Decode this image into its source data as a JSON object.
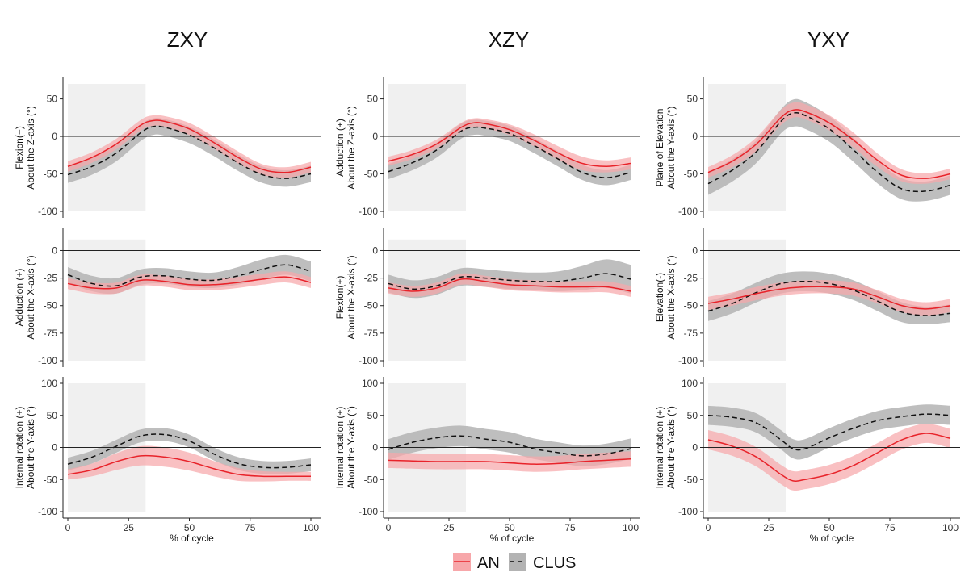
{
  "chart_data": {
    "type": "line",
    "column_titles": [
      "ZXY",
      "XZY",
      "YXY"
    ],
    "xlabel": "% of cycle",
    "x_ticks": [
      0,
      25,
      50,
      75,
      100
    ],
    "xlim": [
      0,
      100
    ],
    "shaded_region_x": [
      0,
      32
    ],
    "legend": {
      "position": "bottom",
      "items": [
        {
          "name": "AN",
          "color": "#e8232a",
          "band_color": "#f7a7aa",
          "line": "solid"
        },
        {
          "name": "CLUS",
          "color": "#111111",
          "band_color": "#b3b3b3",
          "line": "dashed"
        }
      ]
    },
    "panels": [
      {
        "row": 0,
        "col": 0,
        "ylabel_lines": [
          "Flexion(+)",
          "About the Z-axis (°)"
        ],
        "ylim": [
          -100,
          70
        ],
        "y_ticks": [
          -100,
          -50,
          0,
          50
        ],
        "zero_line": true,
        "x": [
          0,
          10,
          20,
          30,
          35,
          40,
          50,
          60,
          70,
          80,
          90,
          100
        ],
        "series": [
          {
            "name": "AN",
            "mean": [
              -40,
              -28,
              -10,
              15,
              21,
              20,
              10,
              -8,
              -28,
              -44,
              -48,
              -41
            ],
            "sd": [
              7,
              7,
              7,
              7,
              7,
              7,
              8,
              8,
              8,
              7,
              7,
              7
            ]
          },
          {
            "name": "CLUS",
            "mean": [
              -51,
              -40,
              -22,
              5,
              13,
              12,
              2,
              -15,
              -35,
              -51,
              -56,
              -50
            ],
            "sd": [
              11,
              11,
              11,
              11,
              11,
              11,
              11,
              11,
              11,
              11,
              11,
              11
            ]
          }
        ]
      },
      {
        "row": 0,
        "col": 1,
        "ylabel_lines": [
          "Adduction (+)",
          "About the Z-axis (°)"
        ],
        "ylim": [
          -100,
          70
        ],
        "y_ticks": [
          -100,
          -50,
          0,
          50
        ],
        "zero_line": true,
        "x": [
          0,
          10,
          20,
          30,
          35,
          40,
          50,
          60,
          70,
          80,
          90,
          100
        ],
        "series": [
          {
            "name": "AN",
            "mean": [
              -33,
              -24,
              -10,
              12,
              18,
              17,
              9,
              -5,
              -22,
              -36,
              -40,
              -36
            ],
            "sd": [
              6,
              6,
              6,
              6,
              6,
              6,
              7,
              8,
              9,
              9,
              8,
              8
            ]
          },
          {
            "name": "CLUS",
            "mean": [
              -47,
              -35,
              -18,
              7,
              12,
              11,
              4,
              -12,
              -30,
              -48,
              -55,
              -48
            ],
            "sd": [
              10,
              10,
              10,
              10,
              10,
              10,
              10,
              10,
              10,
              10,
              10,
              10
            ]
          }
        ]
      },
      {
        "row": 0,
        "col": 2,
        "ylabel_lines": [
          "Plane of Elevation",
          "About the Y-axis (°)"
        ],
        "ylim": [
          -100,
          70
        ],
        "y_ticks": [
          -100,
          -50,
          0,
          50
        ],
        "zero_line": true,
        "x": [
          0,
          10,
          20,
          30,
          35,
          40,
          50,
          60,
          70,
          80,
          90,
          100
        ],
        "series": [
          {
            "name": "AN",
            "mean": [
              -48,
              -33,
              -10,
              25,
              35,
              33,
              18,
              -5,
              -32,
              -52,
              -56,
              -50
            ],
            "sd": [
              7,
              8,
              9,
              10,
              10,
              10,
              10,
              10,
              9,
              8,
              7,
              7
            ]
          },
          {
            "name": "CLUS",
            "mean": [
              -63,
              -45,
              -20,
              20,
              31,
              28,
              10,
              -18,
              -48,
              -70,
              -73,
              -65
            ],
            "sd": [
              15,
              15,
              15,
              16,
              18,
              18,
              17,
              16,
              15,
              14,
              13,
              13
            ]
          }
        ]
      },
      {
        "row": 1,
        "col": 0,
        "ylabel_lines": [
          "Adduction (+)",
          "About the X-axis (°)"
        ],
        "ylim": [
          -100,
          15
        ],
        "y_ticks": [
          -100,
          -75,
          -50,
          -25,
          0
        ],
        "zero_line": true,
        "x": [
          0,
          10,
          20,
          30,
          40,
          50,
          60,
          70,
          80,
          90,
          100
        ],
        "series": [
          {
            "name": "AN",
            "mean": [
              -30,
              -34,
              -34,
              -27,
              -28,
              -31,
              -31,
              -29,
              -26,
              -24,
              -29
            ],
            "sd": [
              5,
              5,
              5,
              5,
              5,
              5,
              5,
              5,
              5,
              5,
              5
            ]
          },
          {
            "name": "CLUS",
            "mean": [
              -22,
              -30,
              -32,
              -24,
              -23,
              -26,
              -27,
              -23,
              -17,
              -13,
              -19
            ],
            "sd": [
              7,
              7,
              7,
              7,
              7,
              7,
              7,
              8,
              9,
              9,
              9
            ]
          }
        ]
      },
      {
        "row": 1,
        "col": 1,
        "ylabel_lines": [
          "Flexion(+)",
          "About the X-axis (°)"
        ],
        "ylim": [
          -100,
          15
        ],
        "y_ticks": [
          -100,
          -75,
          -50,
          -25,
          0
        ],
        "zero_line": true,
        "x": [
          0,
          10,
          20,
          30,
          40,
          50,
          60,
          70,
          80,
          90,
          100
        ],
        "series": [
          {
            "name": "AN",
            "mean": [
              -34,
              -37,
              -34,
              -26,
              -28,
              -31,
              -32,
              -33,
              -33,
              -33,
              -37
            ],
            "sd": [
              5,
              5,
              5,
              5,
              5,
              5,
              5,
              5,
              5,
              5,
              5
            ]
          },
          {
            "name": "CLUS",
            "mean": [
              -30,
              -35,
              -32,
              -24,
              -25,
              -27,
              -28,
              -28,
              -25,
              -21,
              -26
            ],
            "sd": [
              8,
              8,
              8,
              8,
              8,
              8,
              8,
              9,
              11,
              13,
              13
            ]
          }
        ]
      },
      {
        "row": 1,
        "col": 2,
        "ylabel_lines": [
          "Elevation(-)",
          "About the X-axis (°)"
        ],
        "ylim": [
          -100,
          15
        ],
        "y_ticks": [
          -100,
          -75,
          -50,
          -25,
          0
        ],
        "zero_line": true,
        "x": [
          0,
          10,
          20,
          30,
          40,
          50,
          60,
          70,
          80,
          90,
          100
        ],
        "series": [
          {
            "name": "AN",
            "mean": [
              -48,
              -44,
              -39,
              -35,
              -33,
              -33,
              -35,
              -42,
              -50,
              -53,
              -50
            ],
            "sd": [
              6,
              6,
              6,
              6,
              6,
              6,
              6,
              6,
              6,
              6,
              6
            ]
          },
          {
            "name": "CLUS",
            "mean": [
              -55,
              -48,
              -38,
              -30,
              -28,
              -30,
              -36,
              -46,
              -56,
              -59,
              -57
            ],
            "sd": [
              9,
              9,
              9,
              9,
              9,
              9,
              9,
              9,
              9,
              8,
              8
            ]
          }
        ]
      },
      {
        "row": 2,
        "col": 0,
        "ylabel_lines": [
          "Internal rotation (+)",
          "About the Y-axis (°)"
        ],
        "ylim": [
          -100,
          100
        ],
        "y_ticks": [
          -100,
          -50,
          0,
          50,
          100
        ],
        "zero_line": true,
        "x": [
          0,
          10,
          20,
          30,
          40,
          50,
          60,
          70,
          80,
          90,
          100
        ],
        "series": [
          {
            "name": "AN",
            "mean": [
              -42,
              -35,
              -22,
              -13,
              -15,
              -22,
              -33,
              -42,
              -45,
              -45,
              -45
            ],
            "sd": [
              8,
              10,
              13,
              15,
              15,
              14,
              12,
              10,
              8,
              7,
              7
            ]
          },
          {
            "name": "CLUS",
            "mean": [
              -26,
              -15,
              2,
              18,
              20,
              10,
              -10,
              -25,
              -31,
              -31,
              -27
            ],
            "sd": [
              10,
              10,
              10,
              10,
              10,
              10,
              10,
              10,
              10,
              10,
              10
            ]
          }
        ]
      },
      {
        "row": 2,
        "col": 1,
        "ylabel_lines": [
          "Internal rotation (+)",
          "About the Y-axis (°)"
        ],
        "ylim": [
          -100,
          100
        ],
        "y_ticks": [
          -100,
          -50,
          0,
          50,
          100
        ],
        "zero_line": true,
        "x": [
          0,
          10,
          20,
          30,
          40,
          50,
          60,
          70,
          80,
          90,
          100
        ],
        "series": [
          {
            "name": "AN",
            "mean": [
              -20,
              -21,
              -22,
              -22,
              -22,
              -24,
              -26,
              -25,
              -22,
              -20,
              -18
            ],
            "sd": [
              12,
              12,
              12,
              12,
              12,
              12,
              12,
              12,
              12,
              12,
              12
            ]
          },
          {
            "name": "CLUS",
            "mean": [
              -3,
              8,
              15,
              18,
              13,
              8,
              -2,
              -8,
              -13,
              -10,
              -2
            ],
            "sd": [
              16,
              16,
              16,
              16,
              16,
              16,
              16,
              16,
              16,
              16,
              16
            ]
          }
        ]
      },
      {
        "row": 2,
        "col": 2,
        "ylabel_lines": [
          "Internal rotation (+)",
          "About the Y-axis (°)"
        ],
        "ylim": [
          -100,
          100
        ],
        "y_ticks": [
          -100,
          -50,
          0,
          50,
          100
        ],
        "zero_line": true,
        "x": [
          0,
          10,
          20,
          30,
          35,
          40,
          50,
          60,
          70,
          80,
          90,
          100
        ],
        "series": [
          {
            "name": "AN",
            "mean": [
              12,
              2,
              -15,
              -42,
              -52,
              -50,
              -42,
              -28,
              -8,
              12,
              22,
              14
            ],
            "sd": [
              15,
              15,
              15,
              15,
              15,
              15,
              15,
              15,
              15,
              15,
              15,
              15
            ]
          },
          {
            "name": "CLUS",
            "mean": [
              50,
              47,
              38,
              12,
              -2,
              -2,
              15,
              30,
              42,
              48,
              52,
              50
            ],
            "sd": [
              15,
              15,
              15,
              15,
              15,
              15,
              15,
              15,
              15,
              15,
              15,
              15
            ]
          }
        ]
      }
    ]
  }
}
